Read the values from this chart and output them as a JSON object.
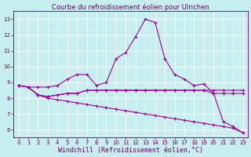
{
  "title": "Courbe du refroidissement éolien pour Ulrichen",
  "xlabel": "Windchill (Refroidissement éolien,°C)",
  "bg_color": "#c8eef0",
  "line_color": "#990099",
  "grid_color": "#ffffff",
  "xlim": [
    -0.5,
    23.5
  ],
  "ylim": [
    5.5,
    13.5
  ],
  "xticks": [
    0,
    1,
    2,
    3,
    4,
    5,
    6,
    7,
    8,
    9,
    10,
    11,
    12,
    13,
    14,
    15,
    16,
    17,
    18,
    19,
    20,
    21,
    22,
    23
  ],
  "yticks": [
    6,
    7,
    8,
    9,
    10,
    11,
    12,
    13
  ],
  "line1": [
    8.8,
    8.7,
    8.7,
    8.7,
    8.8,
    9.2,
    9.5,
    9.5,
    8.8,
    9.0,
    10.5,
    10.9,
    11.9,
    13.0,
    12.8,
    10.5,
    9.5,
    9.2,
    8.8,
    8.9,
    8.3,
    6.5,
    6.2,
    5.8
  ],
  "line2": [
    8.8,
    8.7,
    8.2,
    8.1,
    8.2,
    8.3,
    8.3,
    8.5,
    8.5,
    8.5,
    8.5,
    8.5,
    8.5,
    8.5,
    8.5,
    8.5,
    8.5,
    8.5,
    8.5,
    8.5,
    8.3,
    8.3,
    8.3,
    8.3
  ],
  "line3": [
    8.8,
    8.7,
    8.2,
    8.1,
    8.2,
    8.3,
    8.3,
    8.5,
    8.5,
    8.5,
    8.5,
    8.5,
    8.5,
    8.5,
    8.5,
    8.5,
    8.5,
    8.5,
    8.5,
    8.5,
    8.5,
    8.5,
    8.5,
    8.5
  ],
  "line4": [
    8.8,
    8.7,
    8.2,
    8.0,
    7.9,
    7.8,
    7.7,
    7.6,
    7.5,
    7.4,
    7.3,
    7.2,
    7.1,
    7.0,
    6.9,
    6.8,
    6.7,
    6.6,
    6.5,
    6.4,
    6.3,
    6.2,
    6.1,
    5.8
  ],
  "title_fontsize": 6,
  "xlabel_fontsize": 6,
  "tick_fontsize": 5,
  "tick_color": "#660066",
  "spine_color": "#660066"
}
